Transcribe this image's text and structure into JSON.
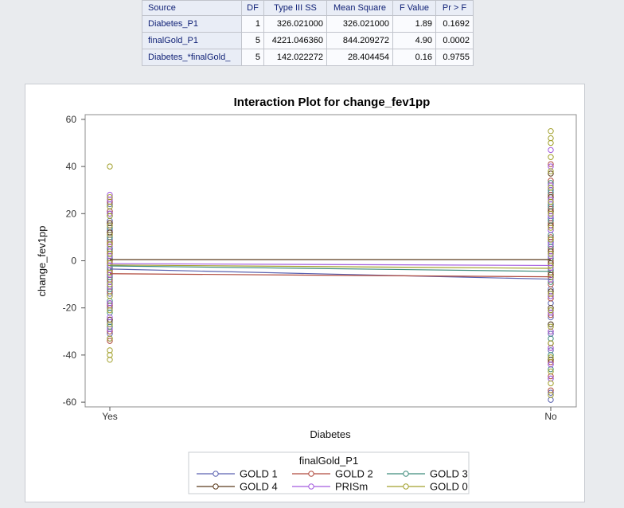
{
  "table": {
    "headers": [
      "Source",
      "DF",
      "Type III SS",
      "Mean Square",
      "F Value",
      "Pr > F"
    ],
    "rows": [
      [
        "Diabetes_P1",
        "1",
        "326.021000",
        "326.021000",
        "1.89",
        "0.1692"
      ],
      [
        "finalGold_P1",
        "5",
        "4221.046360",
        "844.209272",
        "4.90",
        "0.0002"
      ],
      [
        "Diabetes_*finalGold_",
        "5",
        "142.022272",
        "28.404454",
        "0.16",
        "0.9755"
      ]
    ]
  },
  "chart_data": {
    "type": "scatter",
    "title": "Interaction Plot for change_fev1pp",
    "xlabel": "Diabetes",
    "ylabel": "change_fev1pp",
    "categories": [
      "Yes",
      "No"
    ],
    "ylim": [
      -62,
      62
    ],
    "yticks": [
      60,
      40,
      20,
      0,
      -20,
      -40,
      -60
    ],
    "grid": false,
    "legend": {
      "title": "finalGold_P1",
      "position": "bottom"
    },
    "series": [
      {
        "name": "GOLD 1",
        "color": "#5a62b0",
        "means": [
          -3.5,
          -7.8
        ],
        "points": {
          "Yes": [
            -33,
            -31,
            -26,
            -20,
            -14,
            -9,
            -5,
            -2,
            2,
            5,
            9,
            13,
            17,
            21,
            24
          ],
          "No": [
            -59,
            -56,
            -50,
            -44,
            -38,
            -31,
            -24,
            -18,
            -12,
            -7,
            -2,
            3,
            8,
            13,
            18,
            24,
            30
          ]
        }
      },
      {
        "name": "GOLD 2",
        "color": "#b04a3d",
        "means": [
          -5.5,
          -6.8
        ],
        "points": {
          "Yes": [
            -34,
            -30,
            -25,
            -19,
            -13,
            -8,
            -4,
            0,
            4,
            8,
            12,
            16,
            21,
            25
          ],
          "No": [
            -55,
            -49,
            -43,
            -37,
            -30,
            -23,
            -16,
            -10,
            -5,
            0,
            5,
            10,
            16,
            22,
            28,
            34,
            41
          ]
        }
      },
      {
        "name": "GOLD 3",
        "color": "#3f8c7c",
        "means": [
          -2.2,
          -4.5
        ],
        "points": {
          "Yes": [
            -28,
            -22,
            -17,
            -12,
            -7,
            -3,
            1,
            5,
            10,
            14,
            19,
            23
          ],
          "No": [
            -46,
            -40,
            -33,
            -27,
            -21,
            -15,
            -9,
            -4,
            1,
            6,
            11,
            17,
            23,
            29,
            33
          ]
        }
      },
      {
        "name": "GOLD 4",
        "color": "#5b3a1c",
        "means": [
          0.5,
          0.5
        ],
        "points": {
          "Yes": [
            -25,
            -18,
            -11,
            -6,
            -1,
            3,
            7,
            12,
            16,
            20
          ],
          "No": [
            -42,
            -35,
            -27,
            -20,
            -13,
            -6,
            -1,
            4,
            9,
            15,
            21,
            27,
            37
          ]
        }
      },
      {
        "name": "PRISm",
        "color": "#a35adf",
        "means": [
          -1.2,
          -2.0
        ],
        "points": {
          "Yes": [
            -29,
            -24,
            -18,
            -11,
            -6,
            -2,
            2,
            6,
            11,
            15,
            20,
            26,
            28
          ],
          "No": [
            -50,
            -44,
            -37,
            -30,
            -22,
            -15,
            -8,
            -3,
            2,
            7,
            13,
            19,
            26,
            32,
            40,
            47
          ]
        }
      },
      {
        "name": "GOLD 0",
        "color": "#a2a02c",
        "means": [
          -1.8,
          -3.2
        ],
        "points": {
          "Yes": [
            -42,
            -40,
            -38,
            -33,
            -27,
            -21,
            -15,
            -10,
            -5,
            -1,
            3,
            7,
            11,
            15,
            19,
            23,
            27,
            40
          ],
          "No": [
            -57,
            -52,
            -47,
            -41,
            -35,
            -28,
            -21,
            -14,
            -7,
            -2,
            3,
            9,
            14,
            20,
            25,
            31,
            38,
            44,
            50,
            52,
            55
          ]
        }
      }
    ]
  }
}
